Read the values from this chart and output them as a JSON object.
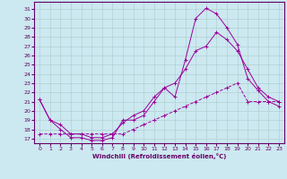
{
  "xlabel": "Windchill (Refroidissement éolien,°C)",
  "background_color": "#cce8f0",
  "grid_color": "#aacccc",
  "line_color": "#990099",
  "x_ticks": [
    0,
    1,
    2,
    3,
    4,
    5,
    6,
    7,
    8,
    9,
    10,
    11,
    12,
    13,
    14,
    15,
    16,
    17,
    18,
    19,
    20,
    21,
    22,
    23
  ],
  "y_ticks": [
    17,
    18,
    19,
    20,
    21,
    22,
    23,
    24,
    25,
    26,
    27,
    28,
    29,
    30,
    31
  ],
  "ylim": [
    16.5,
    31.8
  ],
  "xlim": [
    -0.5,
    23.5
  ],
  "line1_x": [
    0,
    1,
    2,
    3,
    4,
    5,
    6,
    7,
    8,
    9,
    10,
    11,
    12,
    13,
    14,
    15,
    16,
    17,
    18,
    19,
    20,
    21,
    22,
    23
  ],
  "line1_y": [
    21.2,
    19.0,
    18.0,
    17.1,
    17.1,
    16.8,
    16.8,
    17.1,
    19.0,
    19.0,
    19.5,
    21.0,
    22.5,
    21.5,
    25.5,
    30.0,
    31.1,
    30.5,
    29.0,
    27.2,
    23.5,
    22.2,
    21.0,
    20.5
  ],
  "line2_x": [
    0,
    1,
    2,
    3,
    4,
    5,
    6,
    7,
    8,
    9,
    10,
    11,
    12,
    13,
    14,
    15,
    16,
    17,
    18,
    19,
    20,
    21,
    22,
    23
  ],
  "line2_y": [
    21.2,
    19.0,
    18.5,
    17.5,
    17.5,
    17.1,
    17.1,
    17.5,
    18.7,
    19.5,
    20.0,
    21.5,
    22.5,
    23.0,
    24.5,
    26.5,
    27.0,
    28.5,
    27.7,
    26.5,
    24.5,
    22.5,
    21.5,
    21.0
  ],
  "line3_x": [
    0,
    1,
    2,
    3,
    4,
    5,
    6,
    7,
    8,
    9,
    10,
    11,
    12,
    13,
    14,
    15,
    16,
    17,
    18,
    19,
    20,
    21,
    22,
    23
  ],
  "line3_y": [
    17.5,
    17.5,
    17.5,
    17.5,
    17.5,
    17.5,
    17.5,
    17.5,
    17.5,
    18.0,
    18.5,
    19.0,
    19.5,
    20.0,
    20.5,
    21.0,
    21.5,
    22.0,
    22.5,
    23.0,
    21.0,
    21.0,
    21.0,
    21.0
  ]
}
